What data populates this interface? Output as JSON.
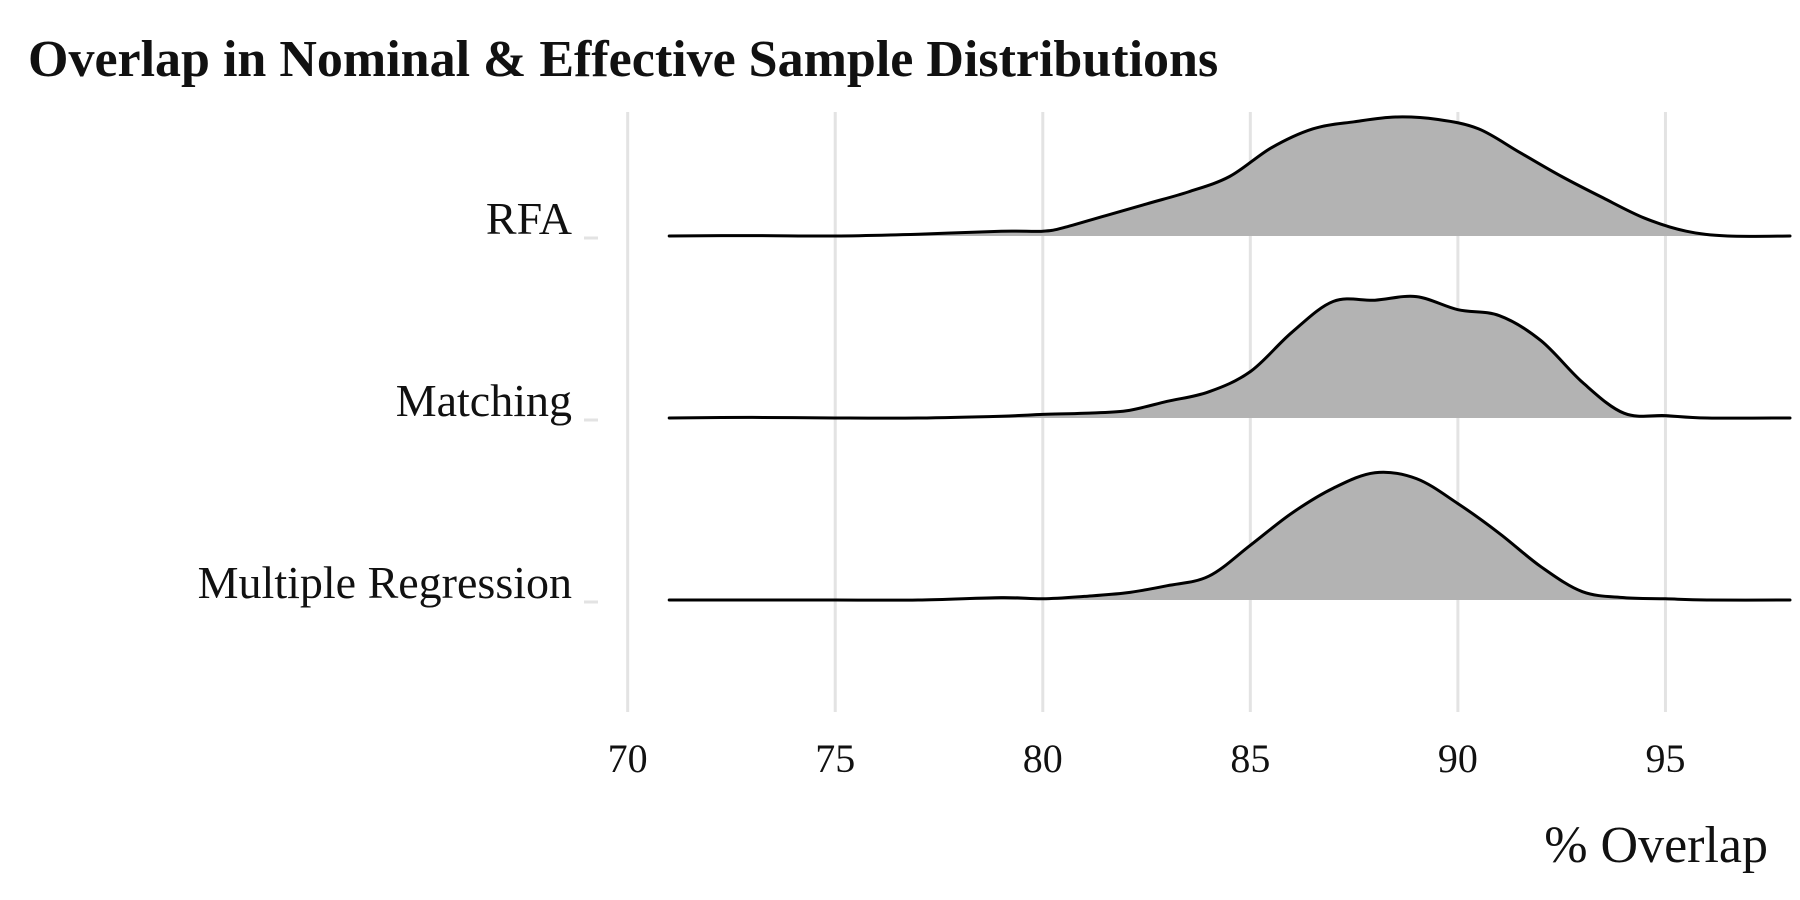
{
  "chart_data": {
    "type": "ridgeline",
    "title": "Overlap in Nominal & Effective Sample Distributions",
    "xlabel": "% Overlap",
    "ylabel": "",
    "xlim": [
      68.9,
      98
    ],
    "x_ticks": [
      70,
      75,
      80,
      85,
      90,
      95
    ],
    "x_tick_labels": [
      "70",
      "75",
      "80",
      "85",
      "90",
      "95"
    ],
    "grid": "vertical major gridlines",
    "legend": "none",
    "colors": {
      "fill": "#b3b3b3",
      "line": "#000000",
      "grid": "#e3e3e3"
    },
    "categories": [
      "RFA",
      "Matching",
      "Multiple Regression"
    ],
    "series": [
      {
        "name": "RFA",
        "x": [
          71,
          73,
          75,
          77,
          79,
          80,
          80.5,
          81.5,
          82.5,
          83.5,
          84.5,
          85.5,
          86.5,
          87.5,
          88.5,
          89.5,
          90.5,
          91.5,
          92.5,
          93.5,
          94.5,
          95.5,
          96.5,
          98
        ],
        "density": [
          0.0,
          0.003,
          0.0,
          0.015,
          0.04,
          0.04,
          0.07,
          0.17,
          0.27,
          0.37,
          0.5,
          0.74,
          0.9,
          0.96,
          1.0,
          0.98,
          0.9,
          0.7,
          0.5,
          0.32,
          0.15,
          0.04,
          0.0,
          0.0
        ]
      },
      {
        "name": "Matching",
        "x": [
          71,
          73,
          75,
          77,
          79,
          80,
          81,
          82,
          83,
          84,
          85,
          86,
          87,
          88,
          89,
          90,
          91,
          92,
          93,
          94,
          95,
          96,
          98
        ],
        "density": [
          0.0,
          0.005,
          0.0,
          0.0,
          0.015,
          0.03,
          0.04,
          0.06,
          0.14,
          0.22,
          0.39,
          0.72,
          0.98,
          0.99,
          1.02,
          0.91,
          0.86,
          0.65,
          0.3,
          0.04,
          0.02,
          0.0,
          0.0
        ]
      },
      {
        "name": "Multiple Regression",
        "x": [
          71,
          73,
          75,
          77,
          79,
          80,
          81,
          82,
          83,
          84,
          85,
          86,
          87,
          88,
          89,
          90,
          91,
          92,
          93,
          94,
          95,
          96,
          98
        ],
        "density": [
          0.0,
          0.0,
          0.0,
          0.0,
          0.02,
          0.01,
          0.03,
          0.06,
          0.12,
          0.2,
          0.46,
          0.73,
          0.94,
          1.07,
          1.02,
          0.81,
          0.56,
          0.28,
          0.07,
          0.02,
          0.01,
          0.0,
          0.0
        ]
      }
    ]
  }
}
